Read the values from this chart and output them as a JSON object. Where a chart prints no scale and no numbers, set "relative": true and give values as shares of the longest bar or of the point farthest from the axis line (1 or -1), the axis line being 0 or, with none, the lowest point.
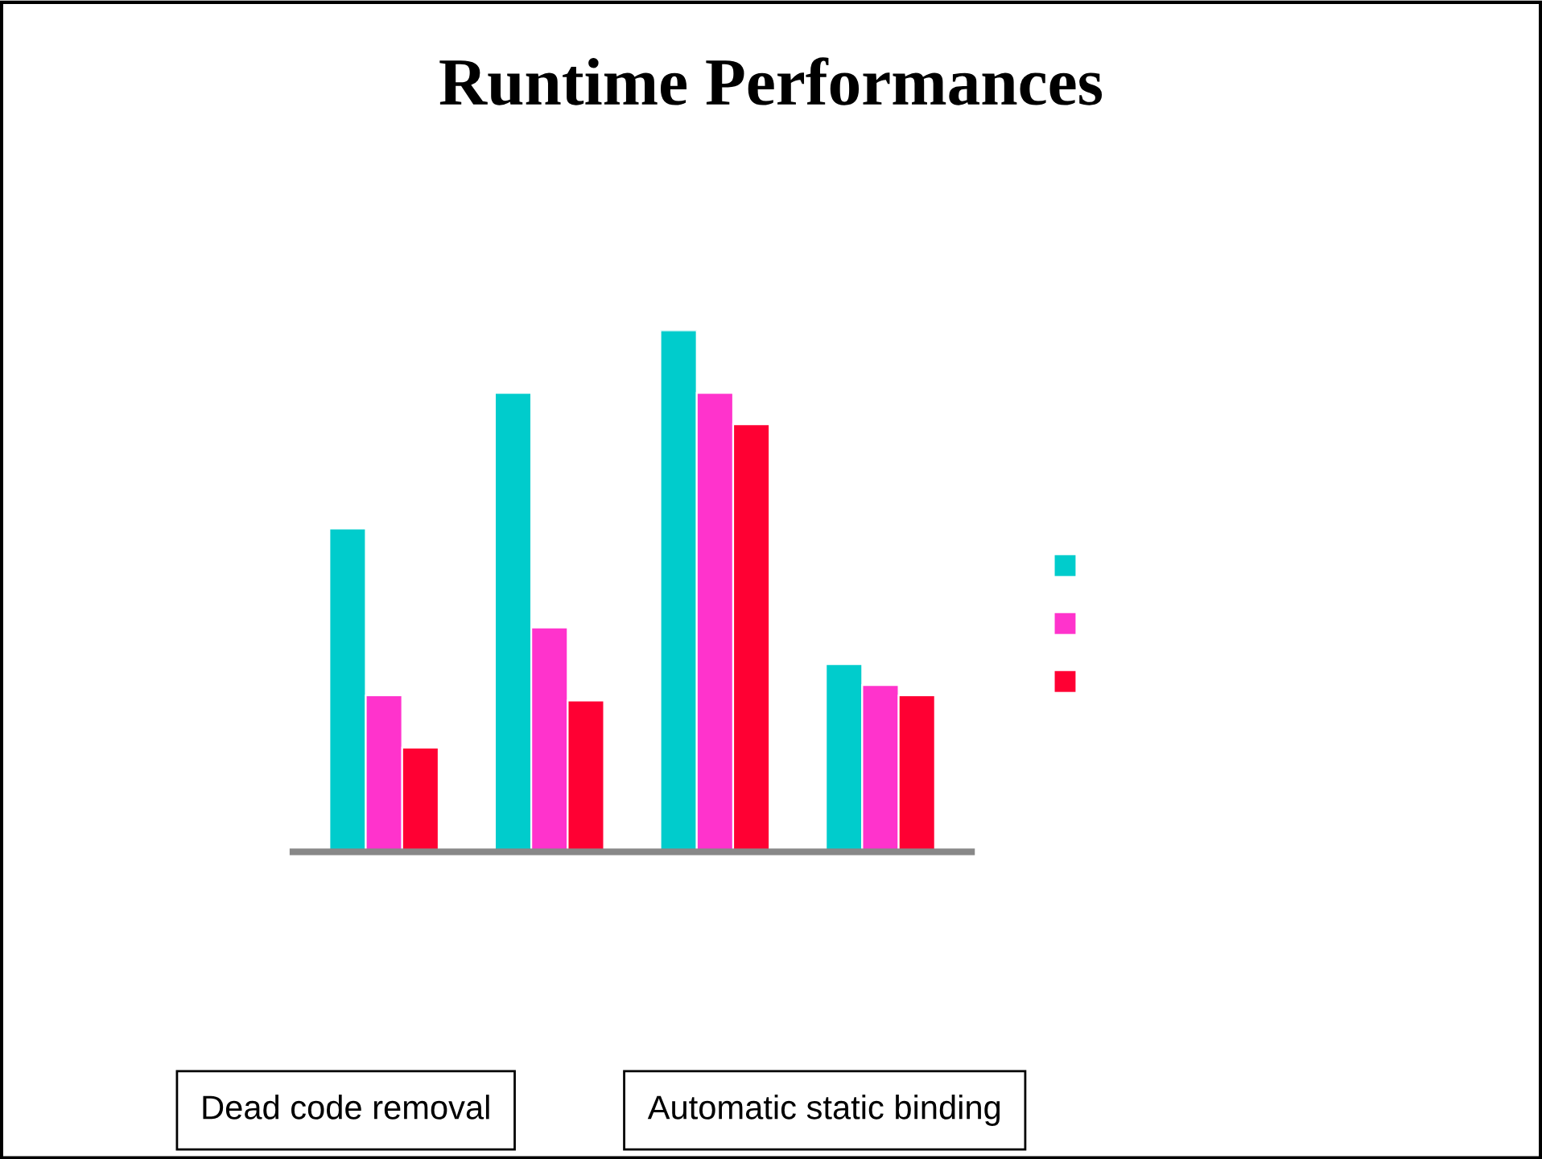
{
  "chart_data": {
    "type": "bar",
    "title": "Runtime Performances",
    "relative": true,
    "categories": [
      null,
      null,
      null,
      null
    ],
    "series": [
      {
        "color": "#00cccc",
        "values": [
          0.62,
          0.88,
          1,
          0.36
        ]
      },
      {
        "color": "#ff33cc",
        "values": [
          0.3,
          0.43,
          0.88,
          0.32
        ]
      },
      {
        "color": "#ff0033",
        "values": [
          0.2,
          0.29,
          0.82,
          0.3
        ]
      }
    ],
    "annotations": [
      "Dead code removal",
      "Automatic static binding"
    ]
  }
}
